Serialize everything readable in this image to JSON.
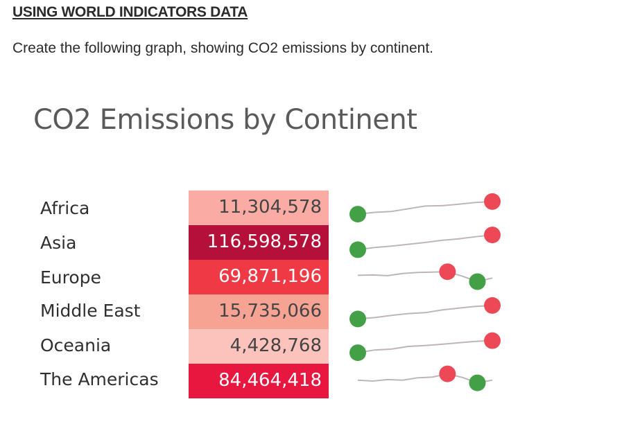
{
  "document": {
    "heading": "USING WORLD INDICATORS DATA",
    "instruction": "Create the following graph, showing CO2 emissions by continent."
  },
  "chart_data": {
    "type": "table",
    "title": "CO2 Emissions by Continent",
    "rows": [
      {
        "label": "Africa",
        "value_text": "11,304,578",
        "value": 11304578,
        "fill": "#f9aba4",
        "text_color": "#444444",
        "trend": [
          0.15,
          0.25,
          0.3,
          0.45,
          0.6,
          0.62,
          0.7,
          0.8,
          0.85
        ]
      },
      {
        "label": "Asia",
        "value_text": "116,598,578",
        "value": 116598578,
        "fill": "#b5103a",
        "text_color": "#ffffff",
        "trend": [
          0.1,
          0.22,
          0.3,
          0.4,
          0.5,
          0.62,
          0.7,
          0.82,
          0.92
        ]
      },
      {
        "label": "Europe",
        "value_text": "69,871,196",
        "value": 69871196,
        "fill": "#ef3a46",
        "text_color": "#ffffff",
        "trend": [
          0.6,
          0.62,
          0.58,
          0.7,
          0.76,
          0.78,
          0.8,
          0.55,
          0.25,
          0.45
        ]
      },
      {
        "label": "Middle East",
        "value_text": "15,735,066",
        "value": 15735066,
        "fill": "#f7a393",
        "text_color": "#444444",
        "trend": [
          0.1,
          0.18,
          0.3,
          0.4,
          0.45,
          0.6,
          0.7,
          0.8,
          0.85
        ]
      },
      {
        "label": "Oceania",
        "value_text": "4,428,768",
        "value": 4428768,
        "fill": "#fcc3bd",
        "text_color": "#444444",
        "trend": [
          0.15,
          0.3,
          0.35,
          0.5,
          0.55,
          0.62,
          0.7,
          0.78,
          0.82
        ]
      },
      {
        "label": "The Americas",
        "value_text": "84,464,418",
        "value": 84464418,
        "fill": "#e8173f",
        "text_color": "#ffffff",
        "trend": [
          0.55,
          0.5,
          0.58,
          0.55,
          0.68,
          0.72,
          0.9,
          0.7,
          0.4,
          0.55
        ]
      }
    ],
    "marker_colors": {
      "min": "#43a047",
      "max": "#ec4855"
    },
    "line_color": "#bfb5b5"
  }
}
